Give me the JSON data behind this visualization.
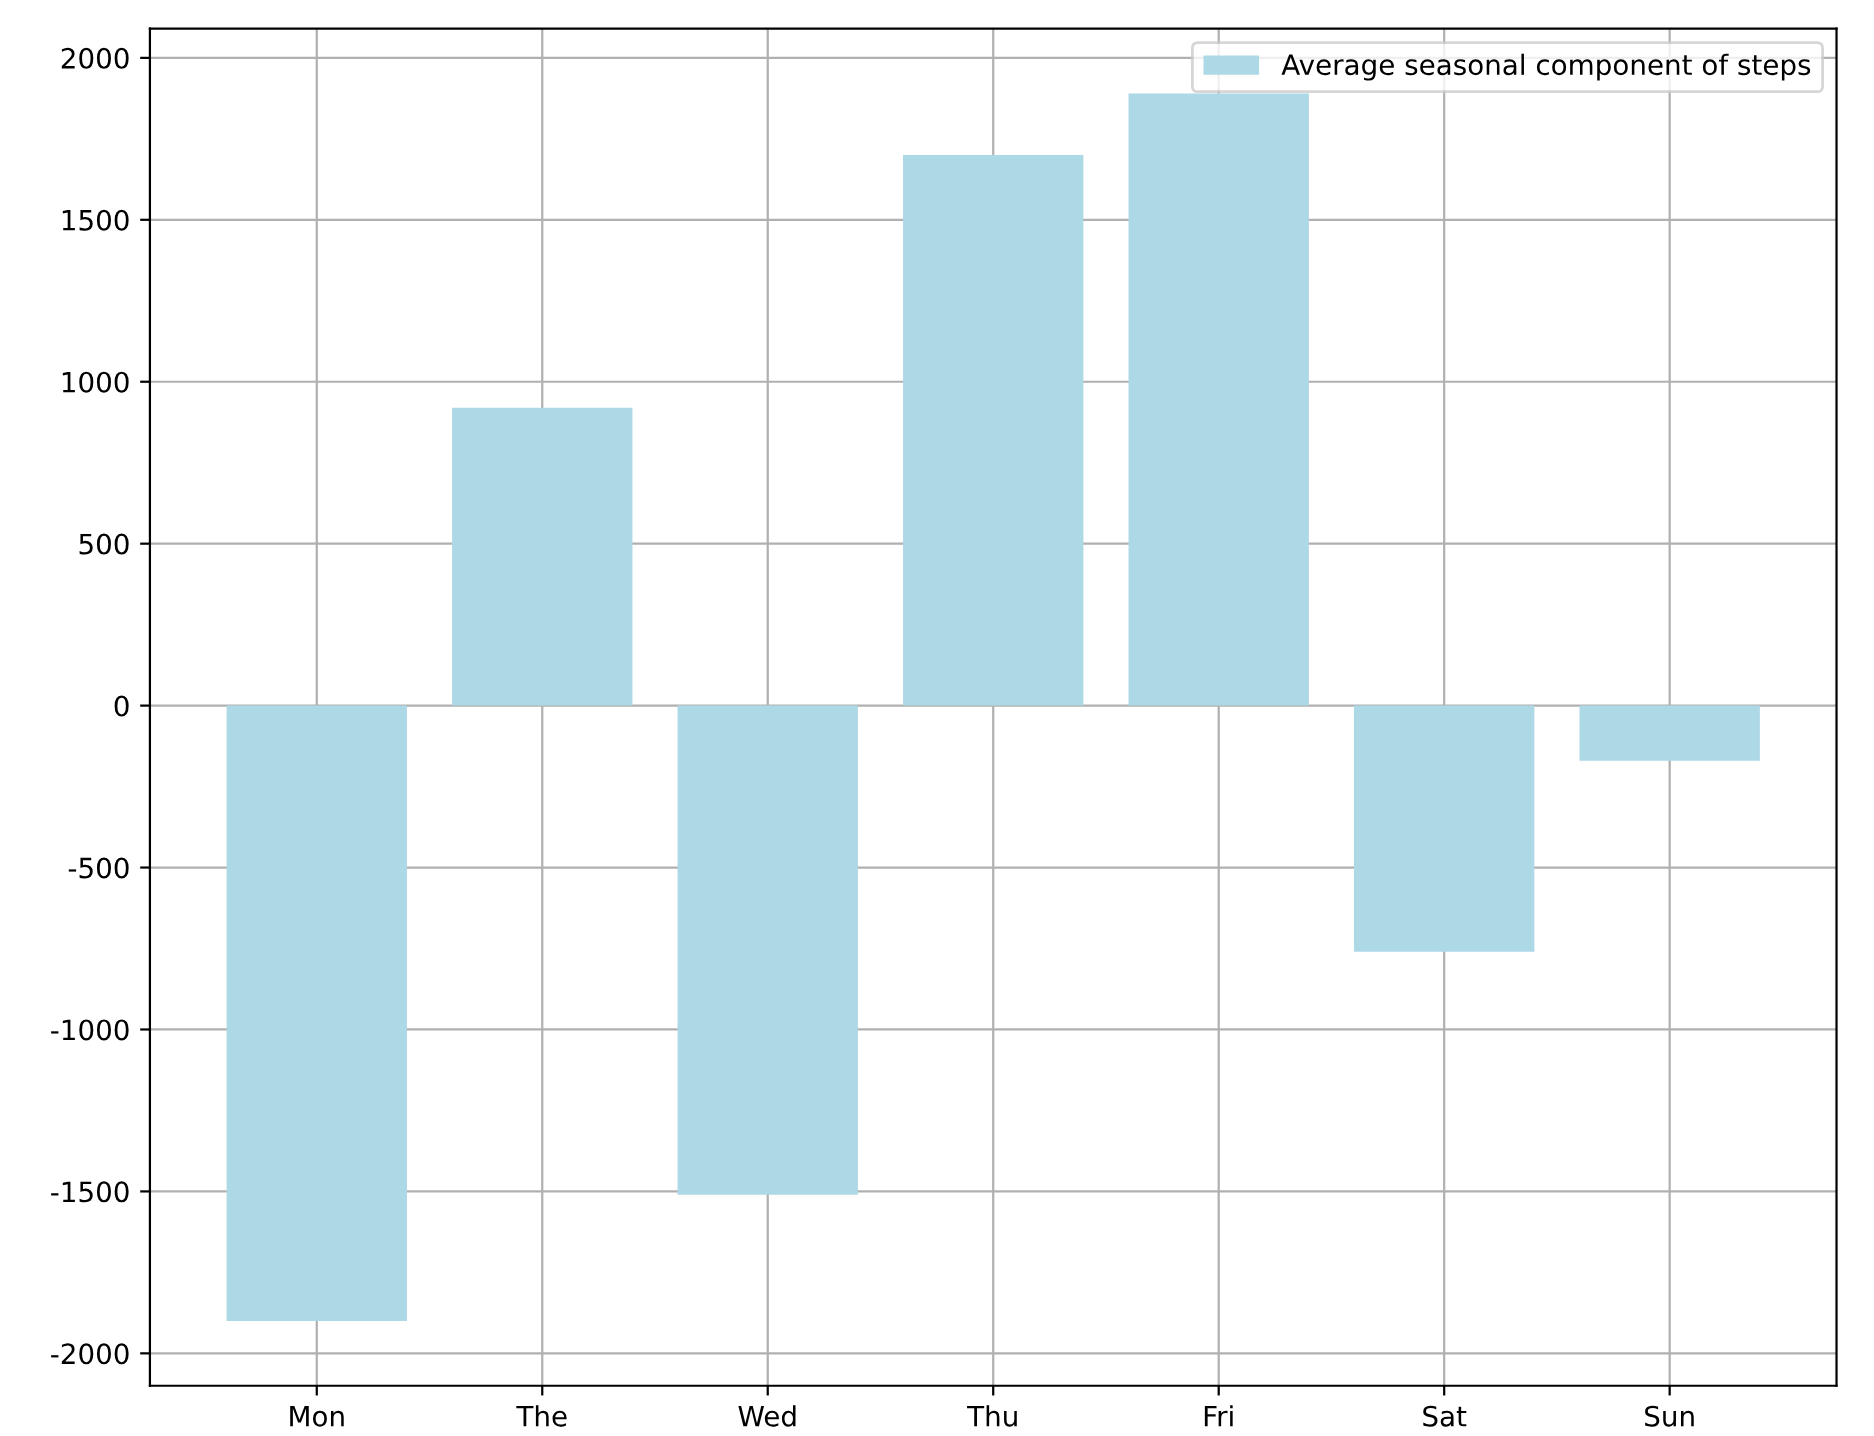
{
  "chart_data": {
    "type": "bar",
    "categories": [
      "Mon",
      "The",
      "Wed",
      "Thu",
      "Fri",
      "Sat",
      "Sun"
    ],
    "series": [
      {
        "name": "Average seasonal component of steps",
        "color": "#add8e6",
        "values": [
          -1900,
          920,
          -1510,
          1700,
          1890,
          -760,
          -170
        ]
      }
    ],
    "ylim": [
      -2100,
      2090
    ],
    "yticks": [
      -2000,
      -1500,
      -1000,
      -500,
      0,
      500,
      1000,
      1500,
      2000
    ],
    "grid": true,
    "legend": "top right"
  }
}
